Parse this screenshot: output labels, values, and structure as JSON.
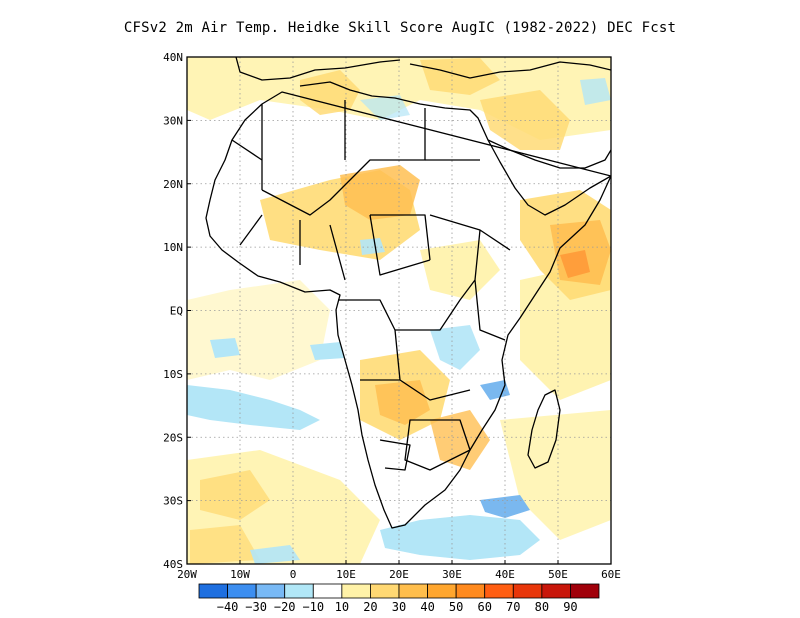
{
  "title": "CFSv2  2m Air Temp. Heidke Skill Score AugIC (1982-2022) DEC Fcst",
  "map": {
    "lat_labels": [
      "40N",
      "30N",
      "20N",
      "10N",
      "EQ",
      "10S",
      "20S",
      "30S",
      "40S"
    ],
    "lon_labels": [
      "20W",
      "10W",
      "0",
      "10E",
      "20E",
      "30E",
      "40E",
      "50E",
      "60E"
    ],
    "lon_range": [
      -20,
      60
    ],
    "lat_range": [
      -40,
      40
    ],
    "grid": "dotted"
  },
  "colorbar": {
    "colors": [
      "#1e6fe0",
      "#3c8ef0",
      "#78b9f5",
      "#b1e7f7",
      "#ffffff",
      "#fff2a8",
      "#ffd873",
      "#ffbe4c",
      "#ffa62e",
      "#ff8a1e",
      "#ff5e12",
      "#e8360a",
      "#c8160a",
      "#a0000a"
    ],
    "labels": [
      "-40",
      "-30",
      "-20",
      "-10",
      "10",
      "20",
      "30",
      "40",
      "50",
      "60",
      "70",
      "80",
      "90"
    ]
  },
  "colors": {
    "land_base": "#fffbe8",
    "light_orange": "#fff0a8",
    "orange": "#ffdb75",
    "deep_orange": "#ffbf52",
    "hot": "#ff9a38",
    "cool": "#b3e6f7",
    "cool_deep": "#7ab8ef",
    "coast": "#000000"
  }
}
